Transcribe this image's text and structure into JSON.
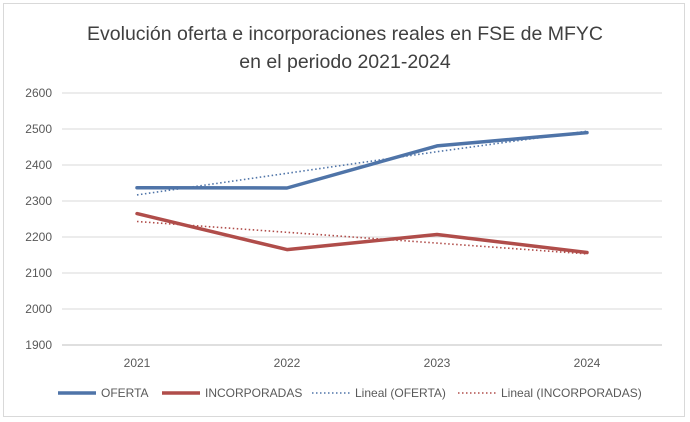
{
  "chart_data": {
    "type": "line",
    "title_line1": "Evolución oferta  e incorporaciones reales en FSE de MFYC",
    "title_line2": "en el periodo 2021-2024",
    "categories": [
      "2021",
      "2022",
      "2023",
      "2024"
    ],
    "yticks": [
      1900,
      2000,
      2100,
      2200,
      2300,
      2400,
      2500,
      2600
    ],
    "ylim": [
      1900,
      2600
    ],
    "grid": true,
    "legend_position": "bottom",
    "series": [
      {
        "name": "OFERTA",
        "values": [
          2337,
          2336,
          2453,
          2490
        ],
        "color": "#4f74a8",
        "style": "solid"
      },
      {
        "name": "INCORPORADAS",
        "values": [
          2265,
          2165,
          2207,
          2157
        ],
        "color": "#b04d4a",
        "style": "solid"
      },
      {
        "name": "Lineal (OFERTA)",
        "values": [
          2317,
          2377,
          2437,
          2494
        ],
        "color": "#4f74a8",
        "style": "dotted"
      },
      {
        "name": "Lineal (INCORPORADAS)",
        "values": [
          2243,
          2213,
          2183,
          2153
        ],
        "color": "#b04d4a",
        "style": "dotted"
      }
    ]
  }
}
